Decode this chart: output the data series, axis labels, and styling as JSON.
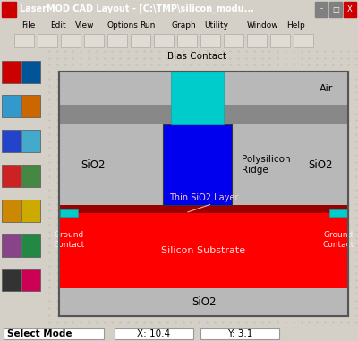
{
  "title_bar": "LaserMOD CAD Layout - [C:\\TMP\\silicon_modu...",
  "menu_items": [
    "File",
    "Edit",
    "View",
    "Options",
    "Run",
    "Graph",
    "Utility",
    "Window",
    "Help"
  ],
  "status_left": "Select Mode",
  "status_x": "X: 10.4",
  "status_y": "Y: 3.1",
  "bg_color": "#c8c8b4",
  "window_bg": "#d4d0c8",
  "titlebar_bg": "#0a246a",
  "titlebar_text": "#ffffff",
  "menubar_bg": "#d4d0c8",
  "toolbar_bg": "#d4d0c8",
  "statusbar_bg": "#d4d0c8",
  "sidebar_bg": "#d4d0c8",
  "poly_color": "#0000ee",
  "silicon_color": "#ff0000",
  "contact_color": "#00cccc",
  "labels": {
    "bias_contact": "Bias Contact",
    "air": "Air",
    "sio2_left": "SiO2",
    "sio2_right": "SiO2",
    "poly": "Polysilicon\nRidge",
    "thin_sio2": "Thin SiO2 Layer",
    "silicon": "Silicon Substrate",
    "sio2_bottom": "SiO2",
    "ground_left": "Ground\nContact",
    "ground_right": "Ground\nContact"
  },
  "label_color": "#000000"
}
